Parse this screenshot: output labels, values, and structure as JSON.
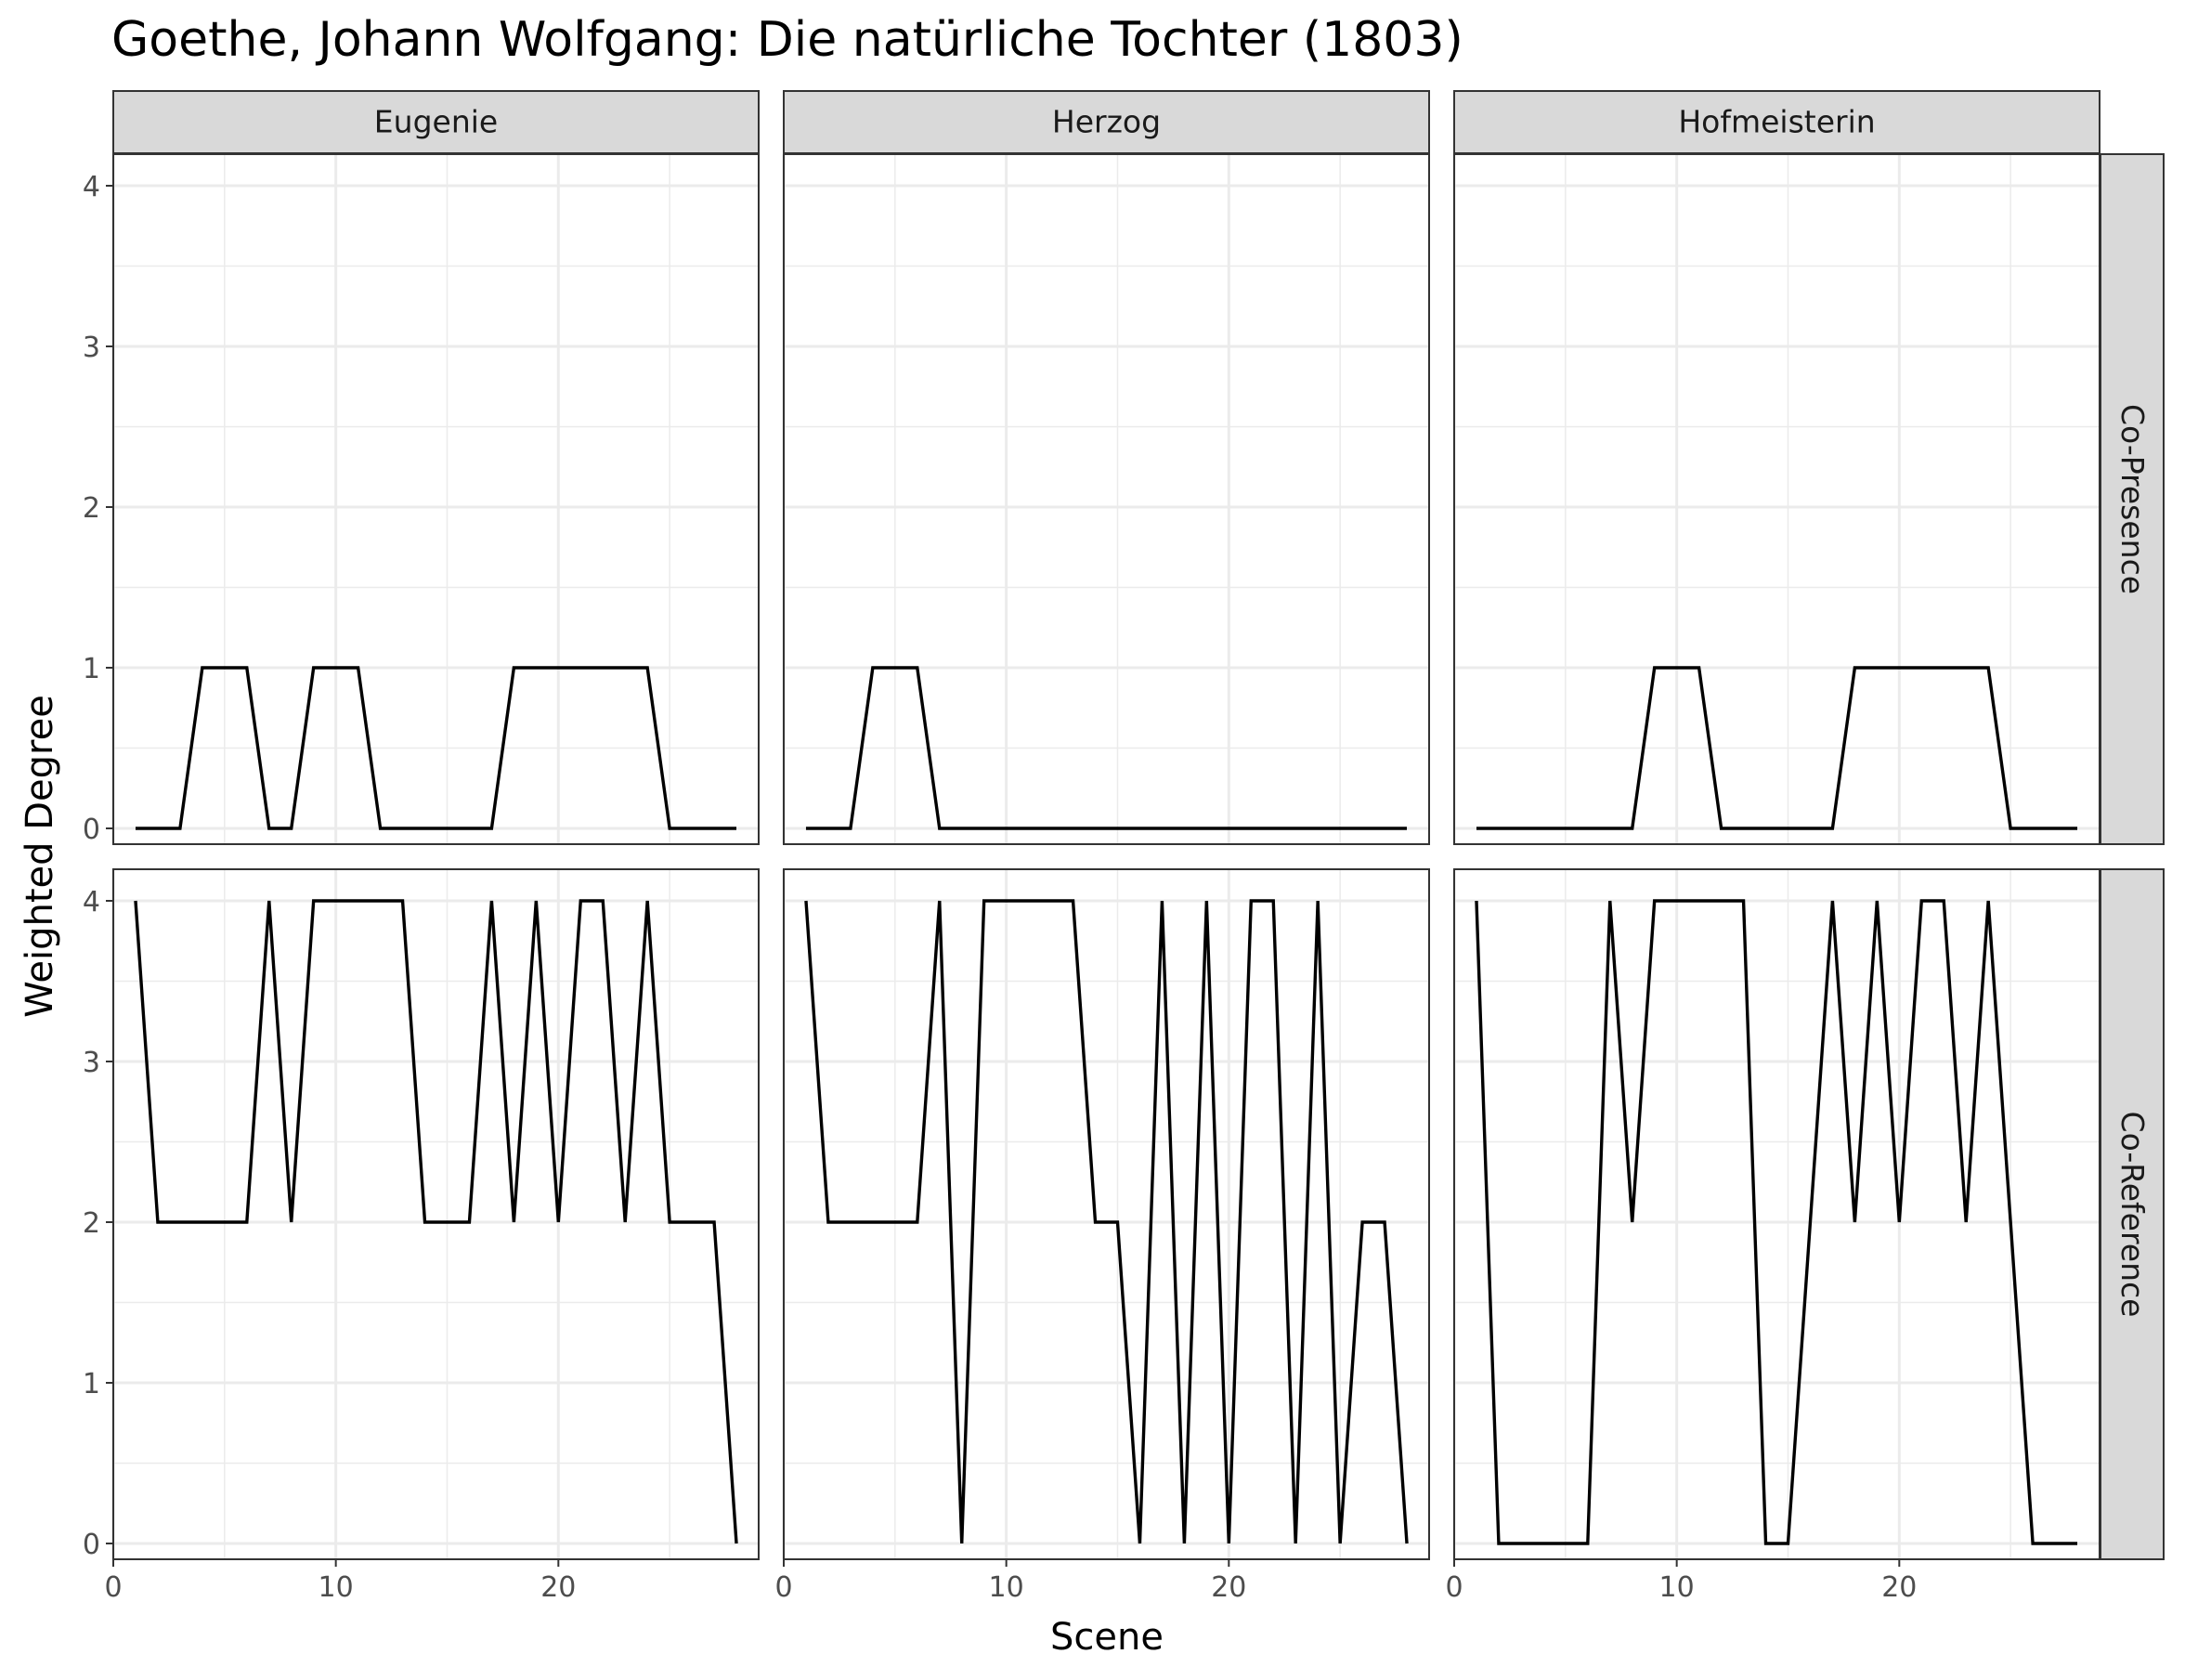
{
  "chart_data": {
    "type": "line",
    "title": "Goethe, Johann Wolfgang: Die natürliche Tochter (1803)",
    "xlabel": "Scene",
    "ylabel": "Weighted Degree",
    "xlim": [
      0,
      29
    ],
    "ylim": [
      0,
      4
    ],
    "x_ticks": [
      "0",
      "10",
      "20"
    ],
    "y_ticks": [
      "0",
      "1",
      "2",
      "3",
      "4"
    ],
    "grid": true,
    "line_color": "#000000",
    "strip_color": "#d9d9d9",
    "columns": [
      "Eugenie",
      "Herzog",
      "Hofmeisterin"
    ],
    "rows": [
      "Co-Presence",
      "Co-Reference"
    ],
    "x": [
      1,
      2,
      3,
      4,
      5,
      6,
      7,
      8,
      9,
      10,
      11,
      12,
      13,
      14,
      15,
      16,
      17,
      18,
      19,
      20,
      21,
      22,
      23,
      24,
      25,
      26,
      27,
      28
    ],
    "panels": [
      {
        "column": "Eugenie",
        "row": "Co-Presence",
        "values": [
          0,
          0,
          0,
          1,
          1,
          1,
          0,
          0,
          1,
          1,
          1,
          0,
          0,
          0,
          0,
          0,
          0,
          1,
          1,
          1,
          1,
          1,
          1,
          1,
          0,
          0,
          0,
          0
        ]
      },
      {
        "column": "Herzog",
        "row": "Co-Presence",
        "values": [
          0,
          0,
          0,
          1,
          1,
          1,
          0,
          0,
          0,
          0,
          0,
          0,
          0,
          0,
          0,
          0,
          0,
          0,
          0,
          0,
          0,
          0,
          0,
          0,
          0,
          0,
          0,
          0
        ]
      },
      {
        "column": "Hofmeisterin",
        "row": "Co-Presence",
        "values": [
          0,
          0,
          0,
          0,
          0,
          0,
          0,
          0,
          1,
          1,
          1,
          0,
          0,
          0,
          0,
          0,
          0,
          1,
          1,
          1,
          1,
          1,
          1,
          1,
          0,
          0,
          0,
          0
        ]
      },
      {
        "column": "Eugenie",
        "row": "Co-Reference",
        "values": [
          4,
          2,
          2,
          2,
          2,
          2,
          4,
          2,
          4,
          4,
          4,
          4,
          4,
          2,
          2,
          2,
          4,
          2,
          4,
          2,
          4,
          4,
          2,
          4,
          2,
          2,
          2,
          0
        ]
      },
      {
        "column": "Herzog",
        "row": "Co-Reference",
        "values": [
          4,
          2,
          2,
          2,
          2,
          2,
          4,
          0,
          4,
          4,
          4,
          4,
          4,
          2,
          2,
          0,
          4,
          0,
          4,
          0,
          4,
          4,
          0,
          4,
          0,
          2,
          2,
          0
        ]
      },
      {
        "column": "Hofmeisterin",
        "row": "Co-Reference",
        "values": [
          4,
          0,
          0,
          0,
          0,
          0,
          4,
          2,
          4,
          4,
          4,
          4,
          4,
          0,
          0,
          2,
          4,
          2,
          4,
          2,
          4,
          4,
          2,
          4,
          2,
          0,
          0,
          0
        ]
      }
    ]
  }
}
